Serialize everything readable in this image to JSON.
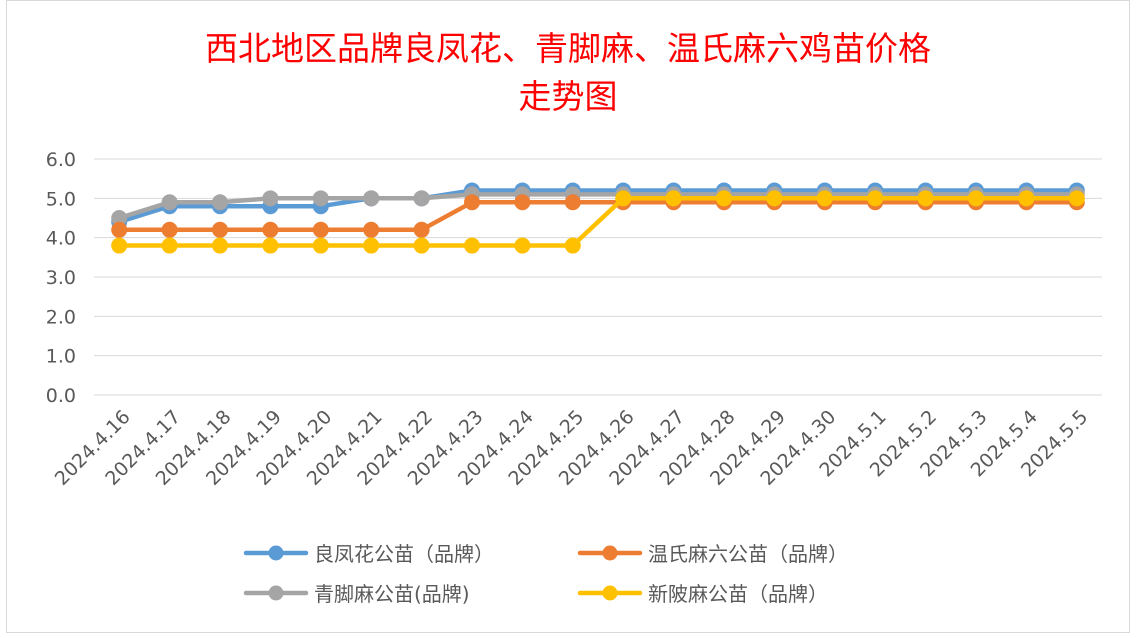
{
  "chart_data": {
    "type": "line",
    "title_lines": [
      "西北地区品牌良凤花、青脚麻、温氏麻六鸡苗价格",
      "走势图"
    ],
    "xlabel": "",
    "ylabel": "",
    "ylim": [
      0,
      6
    ],
    "yticks": [
      "0.0",
      "1.0",
      "2.0",
      "3.0",
      "4.0",
      "5.0",
      "6.0"
    ],
    "grid": true,
    "legend_position": "bottom",
    "categories": [
      "2024.4.16",
      "2024.4.17",
      "2024.4.18",
      "2024.4.19",
      "2024.4.20",
      "2024.4.21",
      "2024.4.22",
      "2024.4.23",
      "2024.4.24",
      "2024.4.25",
      "2024.4.26",
      "2024.4.27",
      "2024.4.28",
      "2024.4.29",
      "2024.4.30",
      "2024.5.1",
      "2024.5.2",
      "2024.5.3",
      "2024.5.4",
      "2024.5.5"
    ],
    "series": [
      {
        "name": "良凤花公苗（品牌）",
        "color": "#5b9bd5",
        "values": [
          4.4,
          4.8,
          4.8,
          4.8,
          4.8,
          5.0,
          5.0,
          5.2,
          5.2,
          5.2,
          5.2,
          5.2,
          5.2,
          5.2,
          5.2,
          5.2,
          5.2,
          5.2,
          5.2,
          5.2
        ]
      },
      {
        "name": "温氏麻六公苗（品牌）",
        "color": "#ed7d31",
        "values": [
          4.2,
          4.2,
          4.2,
          4.2,
          4.2,
          4.2,
          4.2,
          4.9,
          4.9,
          4.9,
          4.9,
          4.9,
          4.9,
          4.9,
          4.9,
          4.9,
          4.9,
          4.9,
          4.9,
          4.9
        ]
      },
      {
        "name": "青脚麻公苗(品牌)",
        "color": "#a5a5a5",
        "values": [
          4.5,
          4.9,
          4.9,
          5.0,
          5.0,
          5.0,
          5.0,
          5.1,
          5.1,
          5.1,
          5.1,
          5.1,
          5.1,
          5.1,
          5.1,
          5.1,
          5.1,
          5.1,
          5.1,
          5.1
        ]
      },
      {
        "name": "新陂麻公苗（品牌）",
        "color": "#ffc000",
        "values": [
          3.8,
          3.8,
          3.8,
          3.8,
          3.8,
          3.8,
          3.8,
          3.8,
          3.8,
          3.8,
          5.0,
          5.0,
          5.0,
          5.0,
          5.0,
          5.0,
          5.0,
          5.0,
          5.0,
          5.0
        ]
      }
    ],
    "draw_order": [
      0,
      2,
      1,
      3
    ],
    "legend_layout": [
      [
        0,
        1
      ],
      [
        2,
        3
      ]
    ],
    "gridline_color": "#d9d9d9"
  }
}
